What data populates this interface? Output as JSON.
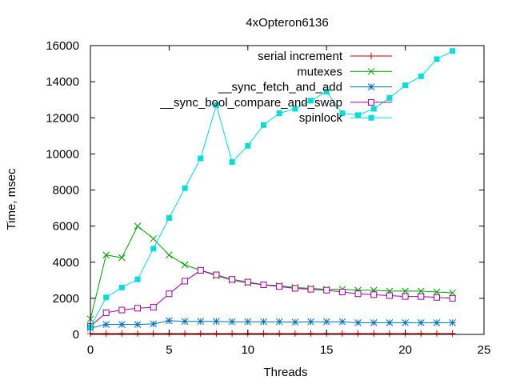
{
  "chart_data": {
    "type": "line",
    "title": "4xOpteron6136",
    "xlabel": "Threads",
    "ylabel": "Time, msec",
    "xlim": [
      0,
      25
    ],
    "ylim": [
      0,
      16000
    ],
    "xticks": [
      0,
      5,
      10,
      15,
      20,
      25
    ],
    "yticks": [
      0,
      2000,
      4000,
      6000,
      8000,
      10000,
      12000,
      14000,
      16000
    ],
    "grid": false,
    "legend_position": "top-right",
    "x": [
      0,
      1,
      2,
      3,
      4,
      5,
      6,
      7,
      8,
      9,
      10,
      11,
      12,
      13,
      14,
      15,
      16,
      17,
      18,
      19,
      20,
      21,
      22,
      23
    ],
    "series": [
      {
        "name": "serial increment",
        "color": "#cc0000",
        "marker": "plus",
        "values": [
          50,
          50,
          50,
          50,
          50,
          50,
          50,
          50,
          50,
          50,
          50,
          50,
          50,
          50,
          50,
          50,
          50,
          50,
          50,
          50,
          50,
          50,
          50,
          50
        ]
      },
      {
        "name": "mutexes",
        "color": "#00a000",
        "marker": "cross",
        "values": [
          850,
          4400,
          4250,
          6000,
          5300,
          4400,
          3850,
          3550,
          3250,
          3000,
          2850,
          2750,
          2700,
          2600,
          2550,
          2500,
          2500,
          2450,
          2450,
          2400,
          2400,
          2400,
          2350,
          2300
        ]
      },
      {
        "name": "__sync_fetch_and_add",
        "color": "#0070c0",
        "marker": "star",
        "values": [
          350,
          550,
          550,
          550,
          580,
          760,
          720,
          720,
          720,
          700,
          700,
          700,
          700,
          680,
          700,
          700,
          700,
          650,
          650,
          650,
          650,
          650,
          650,
          650
        ]
      },
      {
        "name": "__sync_bool_compare_and_swap",
        "color": "#a000a0",
        "marker": "open-square",
        "values": [
          450,
          1200,
          1350,
          1450,
          1500,
          2250,
          2950,
          3550,
          3300,
          3050,
          2900,
          2750,
          2650,
          2550,
          2500,
          2450,
          2350,
          2250,
          2200,
          2150,
          2100,
          2100,
          2050,
          2000
        ]
      },
      {
        "name": "spinlock",
        "color": "#00dddd",
        "marker": "filled-square",
        "values": [
          400,
          2050,
          2600,
          3050,
          4750,
          6450,
          8100,
          9750,
          12700,
          9550,
          10450,
          11600,
          12250,
          12500,
          12950,
          13450,
          12250,
          12150,
          12500,
          13100,
          13800,
          14300,
          15250,
          15700
        ]
      }
    ]
  }
}
